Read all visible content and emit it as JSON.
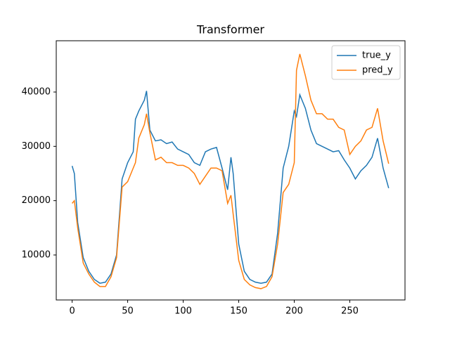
{
  "chart_data": {
    "type": "line",
    "title": "Transformer",
    "x": [
      0,
      2,
      5,
      10,
      15,
      20,
      25,
      30,
      35,
      40,
      45,
      50,
      55,
      57,
      60,
      65,
      67,
      70,
      75,
      80,
      85,
      90,
      95,
      100,
      105,
      110,
      115,
      120,
      125,
      130,
      135,
      140,
      143,
      145,
      150,
      155,
      160,
      165,
      170,
      175,
      180,
      185,
      190,
      195,
      200,
      202,
      205,
      210,
      215,
      220,
      225,
      230,
      235,
      240,
      245,
      250,
      255,
      260,
      265,
      270,
      275,
      280,
      285
    ],
    "series": [
      {
        "name": "true_y",
        "color": "#1f77b4",
        "values": [
          26400,
          25000,
          16000,
          9500,
          7000,
          5500,
          4800,
          5000,
          6500,
          10000,
          24000,
          27000,
          29000,
          35000,
          36500,
          38500,
          40200,
          33000,
          31000,
          31200,
          30500,
          30800,
          29500,
          29000,
          28500,
          27000,
          26500,
          29000,
          29500,
          29800,
          26000,
          22000,
          28000,
          25000,
          12000,
          7000,
          5500,
          5000,
          4800,
          5000,
          6500,
          14000,
          26000,
          30000,
          36500,
          35500,
          39500,
          37000,
          33000,
          30500,
          30000,
          29500,
          29000,
          29200,
          27500,
          26000,
          24000,
          25500,
          26500,
          28000,
          31500,
          26000,
          22300
        ]
      },
      {
        "name": "pred_y",
        "color": "#ff7f0e",
        "values": [
          19500,
          20000,
          15000,
          8500,
          6500,
          5000,
          4200,
          4200,
          6000,
          9500,
          22500,
          23500,
          26000,
          27000,
          31500,
          34000,
          36000,
          32500,
          27500,
          28000,
          27000,
          27000,
          26500,
          26500,
          26000,
          25000,
          23000,
          24500,
          26000,
          26000,
          25500,
          19500,
          21000,
          17500,
          9000,
          5500,
          4500,
          4000,
          3800,
          4200,
          6000,
          12000,
          21500,
          23000,
          27000,
          44000,
          47000,
          43000,
          38500,
          36000,
          36000,
          35000,
          35000,
          33500,
          33000,
          28500,
          30000,
          31000,
          33000,
          33500,
          37000,
          31000,
          26800
        ]
      }
    ],
    "xlim": [
      -14.3,
      299.7
    ],
    "xticks": [
      0,
      50,
      100,
      150,
      200,
      250
    ],
    "ylim": [
      1720,
      49440
    ],
    "yticks": [
      10000,
      20000,
      30000,
      40000
    ],
    "legend": "upper right"
  }
}
